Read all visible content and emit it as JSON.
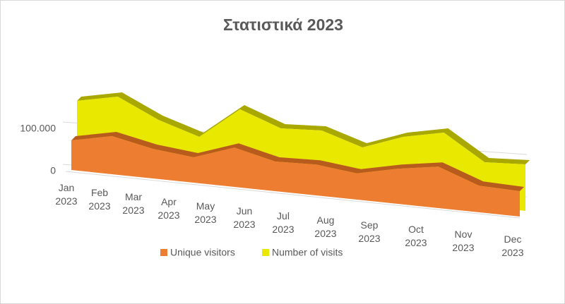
{
  "chart_data": {
    "type": "area3d",
    "title": "Στατιστικά 2023",
    "categories": [
      "Jan 2023",
      "Feb 2023",
      "Mar 2023",
      "Apr 2023",
      "May 2023",
      "Jun 2023",
      "Jul 2023",
      "Aug 2023",
      "Sep 2023",
      "Oct 2023",
      "Nov 2023",
      "Dec 2023"
    ],
    "series": [
      {
        "name": "Unique visitors",
        "color": "#ed7d31",
        "values": [
          70000,
          90000,
          70000,
          60000,
          93000,
          70000,
          73000,
          62000,
          83000,
          98000,
          63000,
          60000
        ]
      },
      {
        "name": "Number of visits",
        "color": "#e8e800",
        "values": [
          150000,
          170000,
          125000,
          95000,
          170000,
          135000,
          140000,
          110000,
          145000,
          165000,
          105000,
          110000
        ]
      }
    ],
    "ylim": [
      0,
      200000
    ],
    "yticks": [
      0,
      {
        "value": 100000,
        "label": "100.000"
      }
    ],
    "grid": true,
    "legend": "bottom"
  }
}
